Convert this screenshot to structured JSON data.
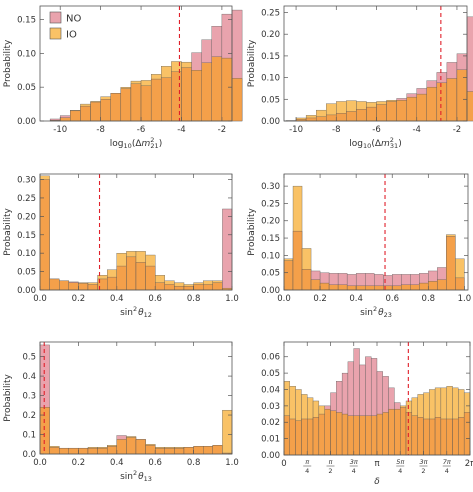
{
  "colors": {
    "NO": "#e9a3ad",
    "IO": "#f9c266",
    "overlap": "#f4a04a",
    "ref_line": "#e0202a"
  },
  "chart_data": [
    {
      "type": "bar",
      "ylabel": "Probability",
      "xlabel": "log10(Δm²21)",
      "x_label_parts": {
        "pre": "log",
        "sub1": "10",
        "mid": "(Δ",
        "var": "m",
        "sup": "2",
        "sub2": "21",
        "post": ")"
      },
      "xlim": [
        -11,
        -1.5
      ],
      "ylim": [
        0,
        0.17
      ],
      "xticks": [
        {
          "v": -10,
          "label": "-10"
        },
        {
          "v": -8,
          "label": "-8"
        },
        {
          "v": -6,
          "label": "-6"
        },
        {
          "v": -4,
          "label": "-4"
        },
        {
          "v": -2,
          "label": "-2"
        }
      ],
      "yticks": [
        {
          "v": 0,
          "label": "0.00"
        },
        {
          "v": 0.05,
          "label": "0.05"
        },
        {
          "v": 0.1,
          "label": "0.10"
        },
        {
          "v": 0.15,
          "label": "0.15"
        }
      ],
      "bin_start": -10.5,
      "bin_width": 0.5,
      "ref_line": -4.1,
      "legend": [
        "NO",
        "IO"
      ],
      "series": [
        {
          "name": "NO",
          "values": [
            0.003,
            0.008,
            0.015,
            0.022,
            0.028,
            0.032,
            0.041,
            0.048,
            0.055,
            0.052,
            0.062,
            0.064,
            0.073,
            0.079,
            0.101,
            0.12,
            0.14,
            0.158,
            0.164
          ]
        },
        {
          "name": "IO",
          "values": [
            0.001,
            0.005,
            0.016,
            0.025,
            0.029,
            0.036,
            0.041,
            0.05,
            0.059,
            0.06,
            0.069,
            0.081,
            0.088,
            0.087,
            0.075,
            0.086,
            0.095,
            0.093,
            0.063
          ]
        }
      ]
    },
    {
      "type": "bar",
      "ylabel": "Probability",
      "xlabel": "log10(Δm²31)",
      "x_label_parts": {
        "pre": "log",
        "sub1": "10",
        "mid": "(Δ",
        "var": "m",
        "sup": "2",
        "sub2": "31",
        "post": ")"
      },
      "xlim": [
        -10.6,
        -1.5
      ],
      "ylim": [
        0,
        0.265
      ],
      "xticks": [
        {
          "v": -10,
          "label": "-10"
        },
        {
          "v": -8,
          "label": "-8"
        },
        {
          "v": -6,
          "label": "-6"
        },
        {
          "v": -4,
          "label": "-4"
        },
        {
          "v": -2,
          "label": "-2"
        }
      ],
      "yticks": [
        {
          "v": 0,
          "label": "0.00"
        },
        {
          "v": 0.05,
          "label": "0.05"
        },
        {
          "v": 0.1,
          "label": "0.10"
        },
        {
          "v": 0.15,
          "label": "0.15"
        },
        {
          "v": 0.2,
          "label": "0.20"
        },
        {
          "v": 0.25,
          "label": "0.25"
        }
      ],
      "bin_start": -10.5,
      "bin_width": 0.5,
      "ref_line": -2.8,
      "series": [
        {
          "name": "NO",
          "values": [
            0.001,
            0.004,
            0.007,
            0.01,
            0.014,
            0.018,
            0.022,
            0.027,
            0.032,
            0.038,
            0.045,
            0.052,
            0.063,
            0.075,
            0.093,
            0.112,
            0.135,
            0.155,
            0.24,
            0.035
          ]
        },
        {
          "name": "IO",
          "values": [
            0.001,
            0.007,
            0.013,
            0.025,
            0.04,
            0.045,
            0.047,
            0.045,
            0.043,
            0.045,
            0.048,
            0.048,
            0.055,
            0.062,
            0.078,
            0.088,
            0.098,
            0.118,
            0.068,
            0.008
          ]
        }
      ]
    },
    {
      "type": "bar",
      "ylabel": "Probability",
      "xlabel": "sin²θ12",
      "x_label_parts": {
        "pre": "sin",
        "sup": "2",
        "var": "θ",
        "sub": "12"
      },
      "xlim": [
        0,
        1
      ],
      "ylim": [
        0,
        0.315
      ],
      "xticks": [
        {
          "v": 0,
          "label": "0.0"
        },
        {
          "v": 0.2,
          "label": "0.2"
        },
        {
          "v": 0.4,
          "label": "0.4"
        },
        {
          "v": 0.6,
          "label": "0.6"
        },
        {
          "v": 0.8,
          "label": "0.8"
        },
        {
          "v": 1,
          "label": "1.0"
        }
      ],
      "yticks": [
        {
          "v": 0,
          "label": "0.00"
        },
        {
          "v": 0.05,
          "label": "0.05"
        },
        {
          "v": 0.1,
          "label": "0.10"
        },
        {
          "v": 0.15,
          "label": "0.15"
        },
        {
          "v": 0.2,
          "label": "0.20"
        },
        {
          "v": 0.25,
          "label": "0.25"
        },
        {
          "v": 0.3,
          "label": "0.30"
        }
      ],
      "bin_start": 0,
      "bin_width": 0.05,
      "ref_line": 0.31,
      "series": [
        {
          "name": "NO",
          "values": [
            0.3,
            0.03,
            0.025,
            0.022,
            0.018,
            0.015,
            0.03,
            0.035,
            0.065,
            0.09,
            0.075,
            0.065,
            0.02,
            0.015,
            0.01,
            0.01,
            0.015,
            0.015,
            0.02,
            0.22
          ]
        },
        {
          "name": "IO",
          "values": [
            0.31,
            0.03,
            0.025,
            0.02,
            0.02,
            0.02,
            0.04,
            0.055,
            0.1,
            0.105,
            0.105,
            0.095,
            0.04,
            0.025,
            0.02,
            0.015,
            0.02,
            0.025,
            0.025,
            0.005
          ]
        }
      ]
    },
    {
      "type": "bar",
      "ylabel": "Probability",
      "xlabel": "sin²θ23",
      "x_label_parts": {
        "pre": "sin",
        "sup": "2",
        "var": "θ",
        "sub": "23"
      },
      "xlim": [
        0,
        1.02
      ],
      "ylim": [
        0,
        0.335
      ],
      "xticks": [
        {
          "v": 0,
          "label": "0.0"
        },
        {
          "v": 0.2,
          "label": "0.2"
        },
        {
          "v": 0.4,
          "label": "0.4"
        },
        {
          "v": 0.6,
          "label": "0.6"
        },
        {
          "v": 0.8,
          "label": "0.8"
        },
        {
          "v": 1,
          "label": "1.0"
        }
      ],
      "yticks": [
        {
          "v": 0,
          "label": "0.00"
        },
        {
          "v": 0.05,
          "label": "0.05"
        },
        {
          "v": 0.1,
          "label": "0.10"
        },
        {
          "v": 0.15,
          "label": "0.15"
        },
        {
          "v": 0.2,
          "label": "0.20"
        },
        {
          "v": 0.25,
          "label": "0.25"
        },
        {
          "v": 0.3,
          "label": "0.30"
        }
      ],
      "bin_start": 0,
      "bin_width": 0.05,
      "ref_line": 0.56,
      "series": [
        {
          "name": "NO",
          "values": [
            0.085,
            0.17,
            0.06,
            0.055,
            0.05,
            0.048,
            0.048,
            0.045,
            0.048,
            0.048,
            0.045,
            0.042,
            0.045,
            0.045,
            0.045,
            0.048,
            0.055,
            0.065,
            0.155,
            0.035
          ]
        },
        {
          "name": "IO",
          "values": [
            0.09,
            0.3,
            0.12,
            0.03,
            0.02,
            0.015,
            0.015,
            0.012,
            0.012,
            0.012,
            0.012,
            0.012,
            0.012,
            0.015,
            0.015,
            0.02,
            0.025,
            0.03,
            0.16,
            0.09
          ]
        }
      ]
    },
    {
      "type": "bar",
      "ylabel": "Probability",
      "xlabel": "sin²θ13",
      "x_label_parts": {
        "pre": "sin",
        "sup": "2",
        "var": "θ",
        "sub": "13"
      },
      "xlim": [
        0,
        1
      ],
      "ylim": [
        0,
        0.575
      ],
      "xticks": [
        {
          "v": 0,
          "label": "0.0"
        },
        {
          "v": 0.2,
          "label": "0.2"
        },
        {
          "v": 0.4,
          "label": "0.4"
        },
        {
          "v": 0.6,
          "label": "0.6"
        },
        {
          "v": 0.8,
          "label": "0.8"
        },
        {
          "v": 1,
          "label": "1.0"
        }
      ],
      "yticks": [
        {
          "v": 0,
          "label": "0.0"
        },
        {
          "v": 0.1,
          "label": "0.1"
        },
        {
          "v": 0.2,
          "label": "0.2"
        },
        {
          "v": 0.3,
          "label": "0.3"
        },
        {
          "v": 0.4,
          "label": "0.4"
        },
        {
          "v": 0.5,
          "label": "0.5"
        }
      ],
      "bin_start": 0,
      "bin_width": 0.05,
      "ref_line": 0.022,
      "series": [
        {
          "name": "NO",
          "values": [
            0.56,
            0.035,
            0.03,
            0.03,
            0.03,
            0.03,
            0.03,
            0.04,
            0.095,
            0.085,
            0.075,
            0.045,
            0.03,
            0.03,
            0.03,
            0.035,
            0.04,
            0.04,
            0.045,
            0.005
          ]
        },
        {
          "name": "IO",
          "values": [
            0.24,
            0.04,
            0.03,
            0.03,
            0.03,
            0.035,
            0.035,
            0.045,
            0.075,
            0.09,
            0.075,
            0.05,
            0.035,
            0.035,
            0.035,
            0.035,
            0.04,
            0.04,
            0.045,
            0.225
          ]
        }
      ]
    },
    {
      "type": "bar",
      "ylabel": "",
      "xlabel": "δ",
      "x_label_parts": {
        "var": "δ"
      },
      "xlim": [
        0,
        6.283
      ],
      "ylim": [
        0,
        0.069
      ],
      "xticks": [
        {
          "v": 0,
          "label": "0"
        },
        {
          "v": 0.785,
          "num": "π",
          "den": "4"
        },
        {
          "v": 1.571,
          "num": "π",
          "den": "2"
        },
        {
          "v": 2.356,
          "num": "3π",
          "den": "4"
        },
        {
          "v": 3.1416,
          "label": "π"
        },
        {
          "v": 3.927,
          "num": "5π",
          "den": "4"
        },
        {
          "v": 4.712,
          "num": "3π",
          "den": "2"
        },
        {
          "v": 5.498,
          "num": "7π",
          "den": "4"
        },
        {
          "v": 6.283,
          "label": "2π"
        }
      ],
      "yticks": [
        {
          "v": 0,
          "label": "0.00"
        },
        {
          "v": 0.01,
          "label": "0.01"
        },
        {
          "v": 0.02,
          "label": "0.02"
        },
        {
          "v": 0.03,
          "label": "0.03"
        },
        {
          "v": 0.04,
          "label": "0.04"
        },
        {
          "v": 0.05,
          "label": "0.05"
        },
        {
          "v": 0.06,
          "label": "0.06"
        }
      ],
      "bin_start": 0,
      "bin_width": 0.1963,
      "ref_line": 4.2,
      "series": [
        {
          "name": "NO",
          "values": [
            0.024,
            0.022,
            0.021,
            0.022,
            0.022,
            0.023,
            0.025,
            0.03,
            0.038,
            0.045,
            0.05,
            0.057,
            0.065,
            0.055,
            0.06,
            0.059,
            0.051,
            0.048,
            0.041,
            0.032,
            0.029,
            0.026,
            0.024,
            0.023,
            0.022,
            0.022,
            0.023,
            0.022,
            0.022,
            0.022,
            0.023,
            0.026
          ]
        },
        {
          "name": "IO",
          "values": [
            0.045,
            0.042,
            0.04,
            0.037,
            0.035,
            0.033,
            0.03,
            0.028,
            0.027,
            0.026,
            0.025,
            0.024,
            0.024,
            0.024,
            0.024,
            0.024,
            0.025,
            0.026,
            0.028,
            0.028,
            0.03,
            0.033,
            0.035,
            0.037,
            0.038,
            0.04,
            0.041,
            0.041,
            0.042,
            0.041,
            0.04,
            0.038
          ]
        }
      ]
    }
  ]
}
